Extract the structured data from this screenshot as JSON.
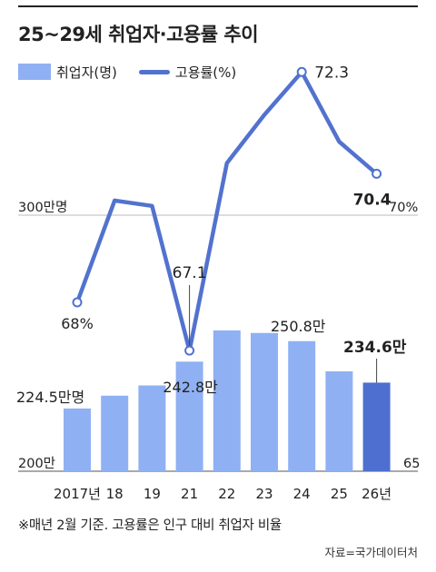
{
  "title": "25~29세 취업자·고용률 추이",
  "legend": {
    "bar_label": "취업자(명)",
    "line_label": "고용률(%)"
  },
  "note": "※매년 2월 기준. 고용률은 인구 대비 취업자 비율",
  "source": "자료=국가데이터처",
  "colors": {
    "bar": "#8fb0f3",
    "bar_highlight": "#4f6fd0",
    "line": "#5272cf",
    "grid": "#bbbbbb"
  },
  "chart_data": {
    "type": "bar+line",
    "categories": [
      "2017년",
      "18",
      "19",
      "21",
      "22",
      "23",
      "24",
      "25",
      "26년"
    ],
    "series": [
      {
        "name": "취업자(명)",
        "type": "bar",
        "unit": "만명",
        "values": [
          224.5,
          229.5,
          233.5,
          242.8,
          255.0,
          254.0,
          250.8,
          239.0,
          234.6
        ],
        "labels": [
          "224.5만명",
          "",
          "",
          "242.8만",
          "",
          "",
          "250.8만",
          "",
          "234.6만"
        ],
        "highlight_index": 8
      },
      {
        "name": "고용률(%)",
        "type": "line",
        "unit": "%",
        "values": [
          68.0,
          69.9,
          69.8,
          67.1,
          70.6,
          71.5,
          72.3,
          71.0,
          70.4
        ],
        "labels": [
          "68%",
          "",
          "",
          "67.1",
          "",
          "",
          "72.3",
          "",
          "70.4"
        ]
      }
    ],
    "left_axis": {
      "ticks": [
        200,
        300
      ],
      "tick_labels": [
        "200만",
        "300만명"
      ],
      "range": [
        200,
        300
      ]
    },
    "right_axis": {
      "ticks": [
        65,
        70
      ],
      "tick_labels": [
        "65",
        "70%"
      ],
      "range": [
        65,
        75
      ]
    },
    "grid": true
  }
}
